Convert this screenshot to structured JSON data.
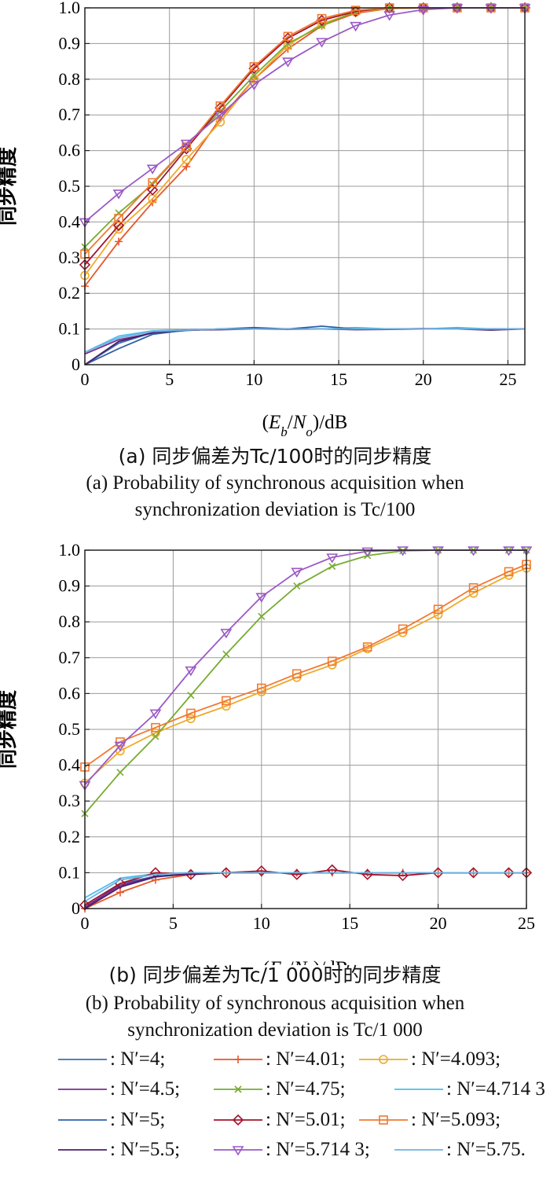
{
  "chart_data": [
    {
      "type": "line",
      "panel": "a",
      "title": "",
      "xlabel": "(E_b/N_o)/dB",
      "ylabel": "同步精度",
      "xlim": [
        0,
        26
      ],
      "ylim": [
        0,
        1.0
      ],
      "xticks": [
        0,
        5,
        10,
        15,
        20,
        25
      ],
      "yticks": [
        0,
        0.1,
        0.2,
        0.3,
        0.4,
        0.5,
        0.6,
        0.7,
        0.8,
        0.9,
        1.0
      ],
      "ytick_labels": [
        "0",
        "0.1",
        "0.2",
        "0.3",
        "0.4",
        "0.5",
        "0.6",
        "0.7",
        "0.8",
        "0.9",
        "1.0"
      ],
      "grid": true,
      "x": [
        0,
        2,
        4,
        6,
        8,
        10,
        12,
        14,
        16,
        18,
        20,
        22,
        24,
        26
      ],
      "series": [
        {
          "name": "N′=4",
          "color": "#3a6fb0",
          "marker": "none",
          "values": [
            0.0,
            0.06,
            0.09,
            0.097,
            0.1,
            0.1,
            0.1,
            0.1,
            0.1,
            0.1,
            0.1,
            0.1,
            0.1,
            0.1
          ]
        },
        {
          "name": "N′=4.01",
          "color": "#e8582a",
          "marker": "plus",
          "values": [
            0.22,
            0.345,
            0.455,
            0.555,
            0.69,
            0.8,
            0.885,
            0.95,
            0.985,
            0.998,
            1.0,
            1.0,
            1.0,
            1.0
          ]
        },
        {
          "name": "N′=4.093",
          "color": "#f0a92a",
          "marker": "circle",
          "values": [
            0.25,
            0.38,
            0.465,
            0.575,
            0.68,
            0.8,
            0.895,
            0.955,
            0.988,
            0.998,
            1.0,
            1.0,
            1.0,
            1.0
          ]
        },
        {
          "name": "N′=4.5",
          "color": "#7b2d8e",
          "marker": "none",
          "values": [
            0.03,
            0.07,
            0.088,
            0.096,
            0.1,
            0.1,
            0.099,
            0.1,
            0.1,
            0.1,
            0.101,
            0.1,
            0.1,
            0.1
          ]
        },
        {
          "name": "N′=4.75",
          "color": "#77ac30",
          "marker": "x",
          "values": [
            0.33,
            0.425,
            0.505,
            0.61,
            0.71,
            0.81,
            0.9,
            0.95,
            0.99,
            1.0,
            1.0,
            1.0,
            1.0,
            1.0
          ]
        },
        {
          "name": "N′=4.714 3",
          "color": "#4dbeee",
          "marker": "none",
          "values": [
            0.035,
            0.08,
            0.095,
            0.098,
            0.1,
            0.1,
            0.1,
            0.1,
            0.104,
            0.1,
            0.1,
            0.104,
            0.1,
            0.1
          ]
        },
        {
          "name": "N′=5",
          "color": "#2f5fa8",
          "marker": "none",
          "values": [
            0.0,
            0.045,
            0.085,
            0.097,
            0.1,
            0.104,
            0.1,
            0.108,
            0.1,
            0.1,
            0.1,
            0.1,
            0.1,
            0.1
          ]
        },
        {
          "name": "N′=5.01",
          "color": "#a2142f",
          "marker": "diamond",
          "values": [
            0.28,
            0.39,
            0.49,
            0.605,
            0.72,
            0.83,
            0.915,
            0.965,
            0.99,
            1.0,
            1.0,
            1.0,
            1.0,
            1.0
          ]
        },
        {
          "name": "N′=5.093",
          "color": "#f07a32",
          "marker": "square",
          "values": [
            0.31,
            0.41,
            0.51,
            0.61,
            0.725,
            0.835,
            0.92,
            0.97,
            0.993,
            1.0,
            1.0,
            1.0,
            1.0,
            1.0
          ]
        },
        {
          "name": "N′=5.5",
          "color": "#4b1e6b",
          "marker": "none",
          "values": [
            0.0,
            0.065,
            0.09,
            0.097,
            0.098,
            0.1,
            0.1,
            0.1,
            0.098,
            0.099,
            0.1,
            0.1,
            0.097,
            0.1
          ]
        },
        {
          "name": "N′=5.714 3",
          "color": "#9b59c5",
          "marker": "triangle-down",
          "values": [
            0.4,
            0.48,
            0.55,
            0.62,
            0.7,
            0.785,
            0.85,
            0.905,
            0.95,
            0.98,
            0.995,
            1.0,
            1.0,
            1.0
          ]
        },
        {
          "name": "N′=5.75",
          "color": "#6fb3e0",
          "marker": "none",
          "values": [
            0.035,
            0.075,
            0.093,
            0.097,
            0.1,
            0.1,
            0.1,
            0.1,
            0.1,
            0.1,
            0.1,
            0.1,
            0.1,
            0.1
          ]
        }
      ]
    },
    {
      "type": "line",
      "panel": "b",
      "title": "",
      "xlabel": "(E_b/N_o)/dB",
      "ylabel": "同步精度",
      "xlim": [
        0,
        25
      ],
      "ylim": [
        0,
        1.0
      ],
      "xticks": [
        0,
        5,
        10,
        15,
        20,
        25
      ],
      "yticks": [
        0,
        0.1,
        0.2,
        0.3,
        0.4,
        0.5,
        0.6,
        0.7,
        0.8,
        0.9,
        1.0
      ],
      "ytick_labels": [
        "0",
        "0.1",
        "0.2",
        "0.3",
        "0.4",
        "0.5",
        "0.6",
        "0.7",
        "0.8",
        "0.9",
        "1.0"
      ],
      "grid": true,
      "x": [
        0,
        2,
        4,
        6,
        8,
        10,
        12,
        14,
        16,
        18,
        20,
        22,
        24,
        25
      ],
      "series": [
        {
          "name": "N′=4",
          "color": "#3a6fb0",
          "marker": "none",
          "values": [
            0.0,
            0.07,
            0.09,
            0.097,
            0.1,
            0.1,
            0.1,
            0.1,
            0.1,
            0.1,
            0.1,
            0.1,
            0.1,
            0.1
          ]
        },
        {
          "name": "N′=4.01",
          "color": "#e8582a",
          "marker": "plus",
          "values": [
            0.0,
            0.045,
            0.08,
            0.095,
            0.1,
            0.1,
            0.1,
            0.1,
            0.1,
            0.1,
            0.1,
            0.1,
            0.1,
            0.1
          ]
        },
        {
          "name": "N′=4.093",
          "color": "#f0a92a",
          "marker": "circle",
          "values": [
            0.35,
            0.44,
            0.49,
            0.53,
            0.565,
            0.605,
            0.645,
            0.68,
            0.725,
            0.77,
            0.82,
            0.88,
            0.93,
            0.95
          ]
        },
        {
          "name": "N′=4.5",
          "color": "#7b2d8e",
          "marker": "none",
          "values": [
            0.005,
            0.065,
            0.09,
            0.096,
            0.1,
            0.1,
            0.1,
            0.1,
            0.1,
            0.1,
            0.1,
            0.1,
            0.1,
            0.1
          ]
        },
        {
          "name": "N′=4.75",
          "color": "#77ac30",
          "marker": "x",
          "values": [
            0.265,
            0.38,
            0.48,
            0.595,
            0.71,
            0.815,
            0.9,
            0.955,
            0.985,
            0.998,
            1.0,
            1.0,
            1.0,
            1.0
          ]
        },
        {
          "name": "N′=4.714 3",
          "color": "#4dbeee",
          "marker": "none",
          "values": [
            0.03,
            0.085,
            0.097,
            0.1,
            0.1,
            0.1,
            0.1,
            0.1,
            0.1,
            0.1,
            0.1,
            0.1,
            0.1,
            0.1
          ]
        },
        {
          "name": "N′=5",
          "color": "#2f5fa8",
          "marker": "none",
          "values": [
            0.0,
            0.06,
            0.088,
            0.097,
            0.1,
            0.1,
            0.1,
            0.1,
            0.1,
            0.1,
            0.1,
            0.1,
            0.1,
            0.1
          ]
        },
        {
          "name": "N′=5.01",
          "color": "#a2142f",
          "marker": "diamond",
          "values": [
            0.01,
            0.07,
            0.1,
            0.095,
            0.1,
            0.105,
            0.095,
            0.108,
            0.095,
            0.092,
            0.1,
            0.1,
            0.1,
            0.1
          ]
        },
        {
          "name": "N′=5.093",
          "color": "#f07a32",
          "marker": "square",
          "values": [
            0.395,
            0.465,
            0.505,
            0.545,
            0.58,
            0.615,
            0.655,
            0.69,
            0.73,
            0.78,
            0.835,
            0.895,
            0.94,
            0.96
          ]
        },
        {
          "name": "N′=5.5",
          "color": "#4b1e6b",
          "marker": "none",
          "values": [
            0.0,
            0.06,
            0.09,
            0.096,
            0.1,
            0.1,
            0.1,
            0.1,
            0.1,
            0.1,
            0.1,
            0.1,
            0.1,
            0.1
          ]
        },
        {
          "name": "N′=5.714 3",
          "color": "#9b59c5",
          "marker": "triangle-down",
          "values": [
            0.345,
            0.455,
            0.545,
            0.665,
            0.77,
            0.87,
            0.94,
            0.98,
            0.997,
            1.0,
            1.0,
            1.0,
            1.0,
            1.0
          ]
        },
        {
          "name": "N′=5.75",
          "color": "#6fb3e0",
          "marker": "none",
          "values": [
            0.02,
            0.08,
            0.095,
            0.1,
            0.1,
            0.1,
            0.1,
            0.1,
            0.1,
            0.1,
            0.1,
            0.1,
            0.1,
            0.1
          ]
        }
      ]
    }
  ],
  "captions": {
    "a_cn": "(a) 同步偏差为Tc/100时的同步精度",
    "a_en_1": "(a) Probability of synchronous acquisition when",
    "a_en_2": "synchronization deviation is Tc/100",
    "b_cn": "(b) 同步偏差为Tc/1 000时的同步精度",
    "b_en_1": "(b) Probability of synchronous acquisition when",
    "b_en_2": "synchronization deviation is Tc/1 000"
  },
  "legend": [
    ": N′=4;",
    ": N′=4.01;",
    ": N′=4.093;",
    ": N′=4.5;",
    ": N′=4.75;",
    ": N′=4.714 3",
    ": N′=5;",
    ": N′=5.01;",
    ": N′=5.093;",
    ": N′=5.5;",
    ": N′=5.714 3;",
    ": N′=5.75."
  ]
}
